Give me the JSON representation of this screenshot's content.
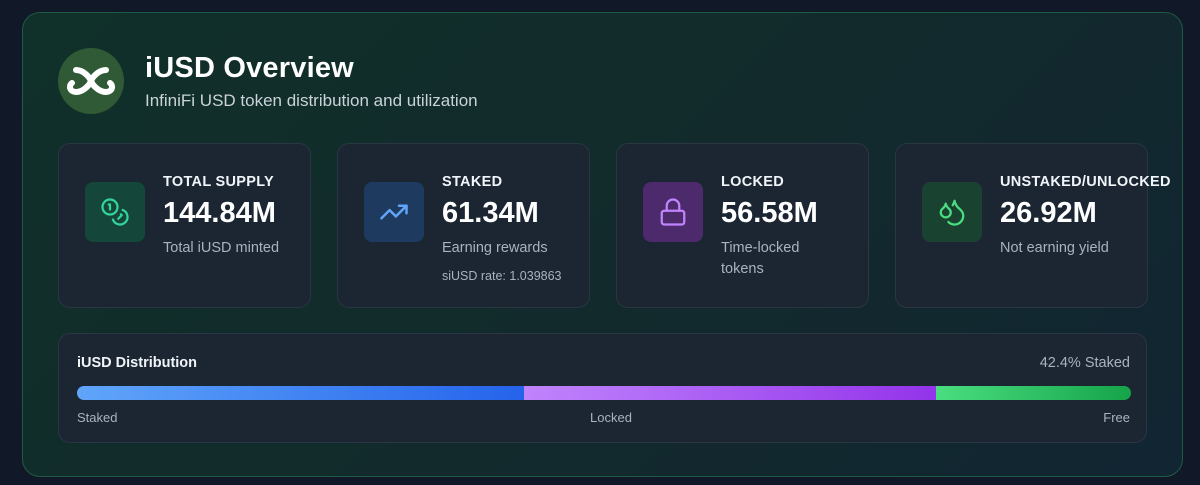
{
  "header": {
    "title": "iUSD Overview",
    "subtitle": "InfiniFi USD token distribution and utilization",
    "logo_icon": "infinity-logo-icon"
  },
  "cards": [
    {
      "label": "TOTAL SUPPLY",
      "value": "144.84M",
      "description": "Total iUSD minted",
      "icon": "coins-icon",
      "icon_color": "#34d399",
      "icon_bg": "#14463a"
    },
    {
      "label": "STAKED",
      "value": "61.34M",
      "description": "Earning rewards",
      "extra": "siUSD rate: 1.039863",
      "icon": "trending-up-icon",
      "icon_color": "#60a5fa",
      "icon_bg": "#1e3a5f"
    },
    {
      "label": "LOCKED",
      "value": "56.58M",
      "description": "Time-locked tokens",
      "icon": "lock-icon",
      "icon_color": "#c084fc",
      "icon_bg": "#4c2a6b"
    },
    {
      "label": "UNSTAKED/UNLOCKED",
      "value": "26.92M",
      "description": "Not earning yield",
      "icon": "droplets-icon",
      "icon_color": "#4ade80",
      "icon_bg": "#1a4231"
    }
  ],
  "distribution": {
    "title": "iUSD Distribution",
    "staked_percent_label": "42.4% Staked",
    "staked_fraction": 0.424,
    "locked_fraction": 0.391,
    "free_fraction": 0.185,
    "labels": {
      "staked": "Staked",
      "locked": "Locked",
      "free": "Free"
    }
  }
}
